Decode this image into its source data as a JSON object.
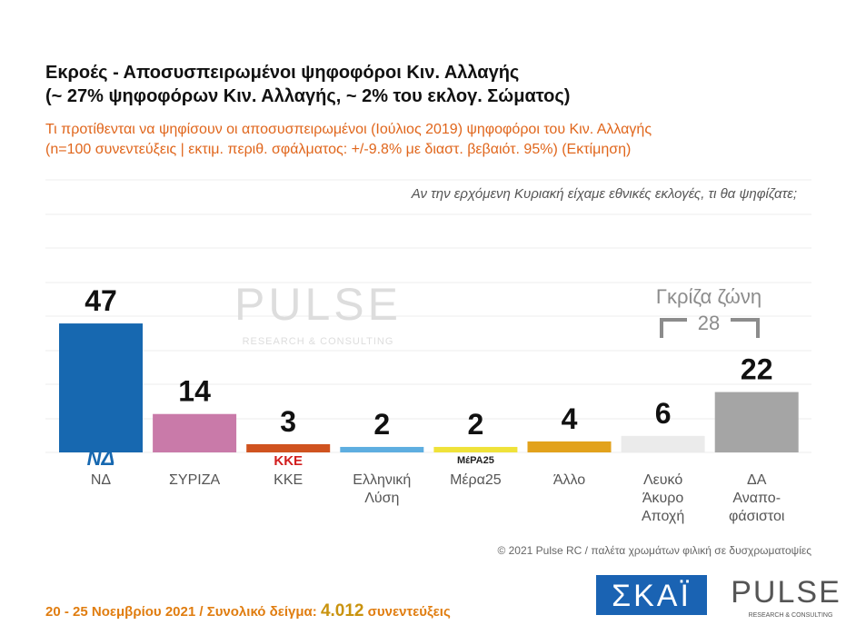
{
  "chart_data": {
    "type": "bar",
    "title": [
      "Εκροές - Αποσυσπειρωμένοι ψηφοφόροι Κιν. Αλλαγής",
      "(~ 27% ψηφοφόρων Κιν. Αλλαγής, ~ 2% του εκλογ. Σώματος)"
    ],
    "subtitle": [
      "Τι προτίθενται να ψηφίσουν οι αποσυσπειρωμένοι (Ιούλιος 2019) ψηφοφόροι του Κιν. Αλλαγής",
      "(n=100 συνεντεύξεις | εκτιμ. περιθ. σφάλματος: +/-9.8% με διαστ. βεβαιότ. 95%)   (Εκτίμηση)"
    ],
    "question": "Αν την ερχόμενη Κυριακή είχαμε εθνικές εκλογές, τι θα ψηφίζατε;",
    "categories": [
      "ΝΔ",
      "ΣΥΡΙΖΑ",
      "ΚΚΕ",
      "Ελληνική\nΛύση",
      "Μέρα25",
      "Άλλο",
      "Λευκό\nΆκυρο\nΑποχή",
      "ΔΑ\nΑναπο-\nφάσιστοι"
    ],
    "values": [
      47,
      14,
      3,
      2,
      2,
      4,
      6,
      22
    ],
    "colors": [
      "#1768b0",
      "#c97aa9",
      "#d0531f",
      "#5eaee0",
      "#efe23a",
      "#e2a21c",
      "#ebebeb",
      "#a5a5a5"
    ],
    "logos": {
      "nd": "ΝΔ",
      "kke": "ΚΚΕ",
      "mera25": "ΜέΡΑ25"
    },
    "gray_zone": {
      "label": "Γκρίζα ζώνη",
      "value": 28
    },
    "watermark": {
      "brand": "PULSE",
      "tagline": "RESEARCH & CONSULTING"
    },
    "copyright": "© 2021 Pulse RC  /  παλέτα χρωμάτων φιλική σε δυσχρωματοψίες",
    "footer": {
      "dates": "20 - 25 Νοεμβρίου 2021  /  Συνολικό δείγμα:",
      "sample": "4.012",
      "unit": "συνεντεύξεις"
    },
    "broadcaster": "ΣΚΑΪ"
  }
}
